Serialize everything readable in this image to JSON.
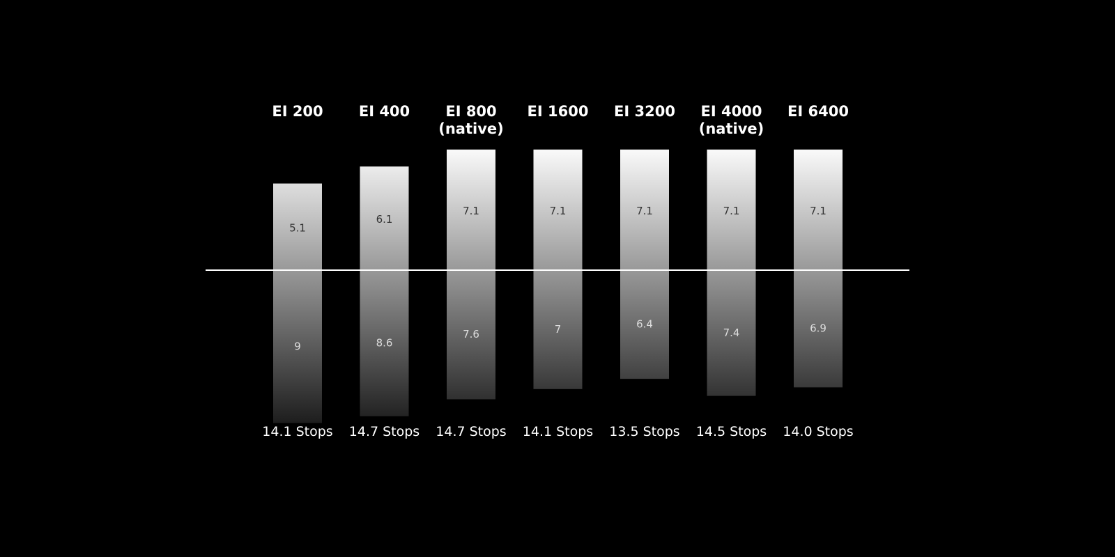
{
  "chart_data": {
    "type": "diverging-bar",
    "categories": [
      "EI 200",
      "EI 400",
      "EI 800 (native)",
      "EI 1600",
      "EI 3200",
      "EI 4000 (native)",
      "EI 6400"
    ],
    "series": [
      {
        "values": [
          5.1,
          6.1,
          7.1,
          7.1,
          7.1,
          7.1,
          7.1
        ],
        "color": "#fafafa"
      },
      {
        "values": [
          9,
          8.6,
          7.6,
          7,
          6.4,
          7.4,
          6.9
        ],
        "color": "#1c1c1c"
      }
    ],
    "totals": [
      "14.1 Stops",
      "14.7 Stops",
      "14.7 Stops",
      "14.1 Stops",
      "13.5 Stops",
      "14.5 Stops",
      "14.0 Stops"
    ]
  }
}
